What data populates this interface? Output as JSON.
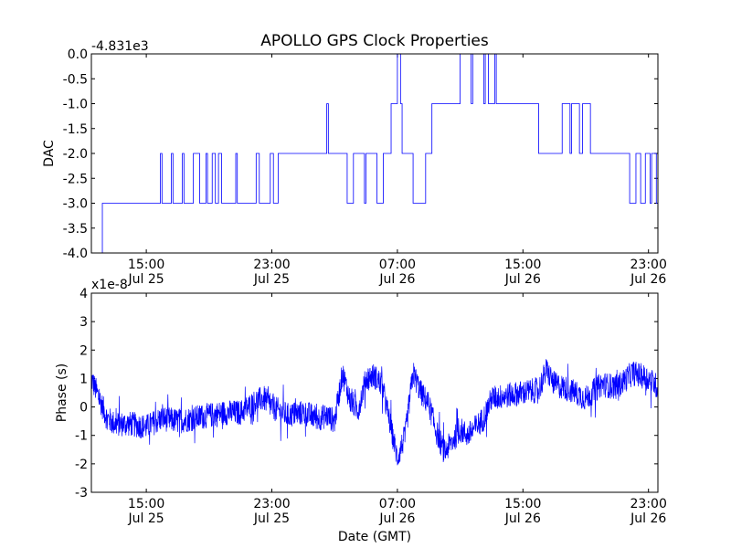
{
  "figure": {
    "title": "APOLLO GPS Clock Properties",
    "xlabel": "Date (GMT)"
  },
  "chart_data": [
    {
      "type": "line",
      "name": "dac",
      "title": "APOLLO GPS Clock Properties",
      "ylabel": "DAC",
      "offset_label": "-4.831e3",
      "ylim": [
        -4.0,
        0.0
      ],
      "yticks": [
        "0.0",
        "-0.5",
        "-1.0",
        "-1.5",
        "-2.0",
        "-2.5",
        "-3.0",
        "-3.5",
        "-4.0"
      ],
      "ytick_values": [
        0.0,
        -0.5,
        -1.0,
        -1.5,
        -2.0,
        -2.5,
        -3.0,
        -3.5,
        -4.0
      ],
      "xlim_hours": [
        11.5,
        24.0
      ],
      "xticks": [
        {
          "time": "15:00",
          "date": "Jul 25",
          "hours": 15
        },
        {
          "time": "23:00",
          "date": "Jul 25",
          "hours": 23
        },
        {
          "time": "07:00",
          "date": "Jul 26",
          "hours": 31
        },
        {
          "time": "15:00",
          "date": "Jul 26",
          "hours": 39
        },
        {
          "time": "23:00",
          "date": "Jul 26",
          "hours": 47
        }
      ],
      "xlim_data": [
        11.5,
        47.6
      ],
      "series_color": "#0000ff",
      "x": [
        11.5,
        12.2,
        12.2,
        15.9,
        15.9,
        16.0,
        16.0,
        16.6,
        16.6,
        16.7,
        16.7,
        17.3,
        17.3,
        17.4,
        17.4,
        18.0,
        18.0,
        18.4,
        18.4,
        18.8,
        18.8,
        18.9,
        18.9,
        19.2,
        19.2,
        19.4,
        19.4,
        19.6,
        19.6,
        19.8,
        19.8,
        20.7,
        20.7,
        20.8,
        20.8,
        22.0,
        22.0,
        22.2,
        22.2,
        22.9,
        22.9,
        23.1,
        23.1,
        23.4,
        23.4,
        23.6,
        23.6,
        26.5,
        26.5,
        26.6,
        26.6,
        27.8,
        27.8,
        28.2,
        28.2,
        28.9,
        28.9,
        29.0,
        29.0,
        29.7,
        29.7,
        30.1,
        30.1,
        30.5,
        30.5,
        30.6,
        30.6,
        31.0,
        31.0,
        31.2,
        31.2,
        31.3,
        31.3,
        32.0,
        32.0,
        32.8,
        32.8,
        33.2,
        33.2,
        35.0,
        35.0,
        35.7,
        35.7,
        35.8,
        35.8,
        36.5,
        36.5,
        36.6,
        36.6,
        36.8,
        36.8,
        37.2,
        37.2,
        37.3,
        37.3,
        40.0,
        40.0,
        41.5,
        41.5,
        42.0,
        42.0,
        42.1,
        42.1,
        42.6,
        42.6,
        42.8,
        42.8,
        43.3,
        43.3,
        45.8,
        45.8,
        46.2,
        46.2,
        46.5,
        46.5,
        46.8,
        46.8,
        47.1,
        47.1,
        47.2,
        47.2,
        47.5,
        47.5,
        47.6
      ],
      "y": [
        -4.0,
        -4.0,
        -3.0,
        -3.0,
        -2.0,
        -2.0,
        -3.0,
        -3.0,
        -2.0,
        -2.0,
        -3.0,
        -3.0,
        -2.0,
        -2.0,
        -3.0,
        -3.0,
        -2.0,
        -2.0,
        -3.0,
        -3.0,
        -2.0,
        -2.0,
        -3.0,
        -3.0,
        -2.0,
        -2.0,
        -3.0,
        -3.0,
        -2.0,
        -2.0,
        -3.0,
        -3.0,
        -2.0,
        -2.0,
        -3.0,
        -3.0,
        -2.0,
        -2.0,
        -3.0,
        -3.0,
        -2.0,
        -2.0,
        -3.0,
        -3.0,
        -2.0,
        -2.0,
        -2.0,
        -2.0,
        -1.0,
        -1.0,
        -2.0,
        -2.0,
        -3.0,
        -3.0,
        -2.0,
        -2.0,
        -3.0,
        -3.0,
        -2.0,
        -2.0,
        -3.0,
        -3.0,
        -2.0,
        -2.0,
        -2.0,
        -2.0,
        -1.0,
        -1.0,
        0.0,
        0.0,
        -1.0,
        -1.0,
        -2.0,
        -2.0,
        -3.0,
        -3.0,
        -2.0,
        -2.0,
        -1.0,
        -1.0,
        0.0,
        0.0,
        -1.0,
        -1.0,
        0.0,
        0.0,
        -1.0,
        -1.0,
        0.0,
        0.0,
        -1.0,
        -1.0,
        0.0,
        0.0,
        -1.0,
        -1.0,
        -2.0,
        -2.0,
        -1.0,
        -1.0,
        -2.0,
        -2.0,
        -1.0,
        -1.0,
        -2.0,
        -2.0,
        -1.0,
        -1.0,
        -2.0,
        -2.0,
        -3.0,
        -3.0,
        -2.0,
        -2.0,
        -3.0,
        -3.0,
        -2.0,
        -2.0,
        -3.0,
        -3.0,
        -2.0,
        -2.0,
        -3.0,
        -3.0
      ]
    },
    {
      "type": "line",
      "name": "phase",
      "ylabel": "Phase (s)",
      "offset_label": "x1e-8",
      "ylim": [
        -3,
        4
      ],
      "yticks": [
        "4",
        "3",
        "2",
        "1",
        "0",
        "-1",
        "-2",
        "-3"
      ],
      "ytick_values": [
        4,
        3,
        2,
        1,
        0,
        -1,
        -2,
        -3
      ],
      "xlabel": "Date (GMT)",
      "xticks": [
        {
          "time": "15:00",
          "date": "Jul 25",
          "hours": 15
        },
        {
          "time": "23:00",
          "date": "Jul 25",
          "hours": 23
        },
        {
          "time": "07:00",
          "date": "Jul 26",
          "hours": 31
        },
        {
          "time": "15:00",
          "date": "Jul 26",
          "hours": 39
        },
        {
          "time": "23:00",
          "date": "Jul 26",
          "hours": 47
        }
      ],
      "xlim_data": [
        11.5,
        47.6
      ],
      "series_color": "#0000ff",
      "trend_x": [
        11.5,
        12.0,
        12.5,
        13.0,
        14.0,
        15.0,
        16.0,
        17.0,
        18.0,
        19.0,
        20.0,
        21.0,
        22.0,
        22.5,
        23.0,
        24.0,
        25.0,
        26.0,
        26.5,
        27.0,
        27.5,
        28.0,
        28.5,
        29.0,
        29.5,
        30.0,
        30.5,
        31.0,
        31.5,
        32.0,
        32.5,
        33.0,
        33.5,
        34.0,
        34.5,
        35.0,
        35.5,
        36.0,
        36.5,
        37.0,
        38.0,
        39.0,
        40.0,
        40.5,
        41.0,
        42.0,
        43.0,
        44.0,
        45.0,
        46.0,
        46.5,
        47.0,
        47.6
      ],
      "trend_y": [
        1.0,
        0.3,
        -0.4,
        -0.6,
        -0.6,
        -0.7,
        -0.4,
        -0.5,
        -0.4,
        -0.3,
        -0.2,
        -0.2,
        0.2,
        0.3,
        0.0,
        -0.3,
        -0.2,
        -0.4,
        -0.3,
        -0.5,
        1.2,
        0.2,
        -0.1,
        1.0,
        1.1,
        0.8,
        -0.5,
        -1.8,
        -1.0,
        1.2,
        0.5,
        0.1,
        -0.9,
        -1.6,
        -1.2,
        -0.8,
        -1.0,
        -0.7,
        -0.4,
        0.3,
        0.4,
        0.5,
        0.6,
        1.3,
        0.8,
        0.6,
        0.3,
        0.8,
        0.7,
        1.2,
        1.1,
        1.0,
        0.7
      ],
      "noise_amplitude": 0.45,
      "sample_count": 2200
    }
  ]
}
